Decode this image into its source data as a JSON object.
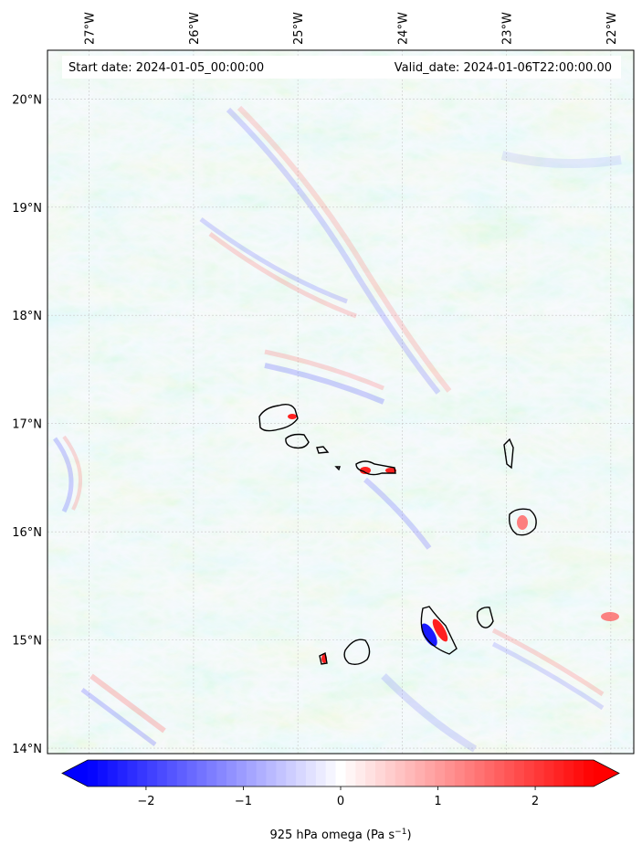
{
  "map": {
    "start_label": "Start date: 2024-01-05_00:00:00",
    "valid_label": "Valid_date: 2024-01-06T22:00:00.00",
    "lon_labels": [
      "27°W",
      "26°W",
      "25°W",
      "24°W",
      "23°W",
      "22°W"
    ],
    "lat_labels": [
      "20°N",
      "19°N",
      "18°N",
      "17°N",
      "16°N",
      "15°N",
      "14°N"
    ],
    "lon_values": [
      -27,
      -26,
      -25,
      -24,
      -23,
      -22
    ],
    "lat_values": [
      20,
      19,
      18,
      17,
      16,
      15,
      14
    ],
    "lon_range": [
      -27.4,
      -21.78
    ],
    "lat_range": [
      13.95,
      20.45
    ]
  },
  "colorbar": {
    "label_prefix": "925 hPa omega (Pa s",
    "label_exp": "−1",
    "label_suffix": ")",
    "range": [
      -2.6,
      2.6
    ],
    "ticks": [
      -2,
      -1,
      0,
      1,
      2
    ],
    "tick_labels": [
      "−2",
      "−1",
      "0",
      "1",
      "2"
    ],
    "n_levels": 51,
    "colormap": "bwr",
    "extend": "both"
  },
  "colors": {
    "negative": "#0000ff",
    "zero": "#ffffff",
    "positive": "#ff0000",
    "coast": "#000000"
  }
}
